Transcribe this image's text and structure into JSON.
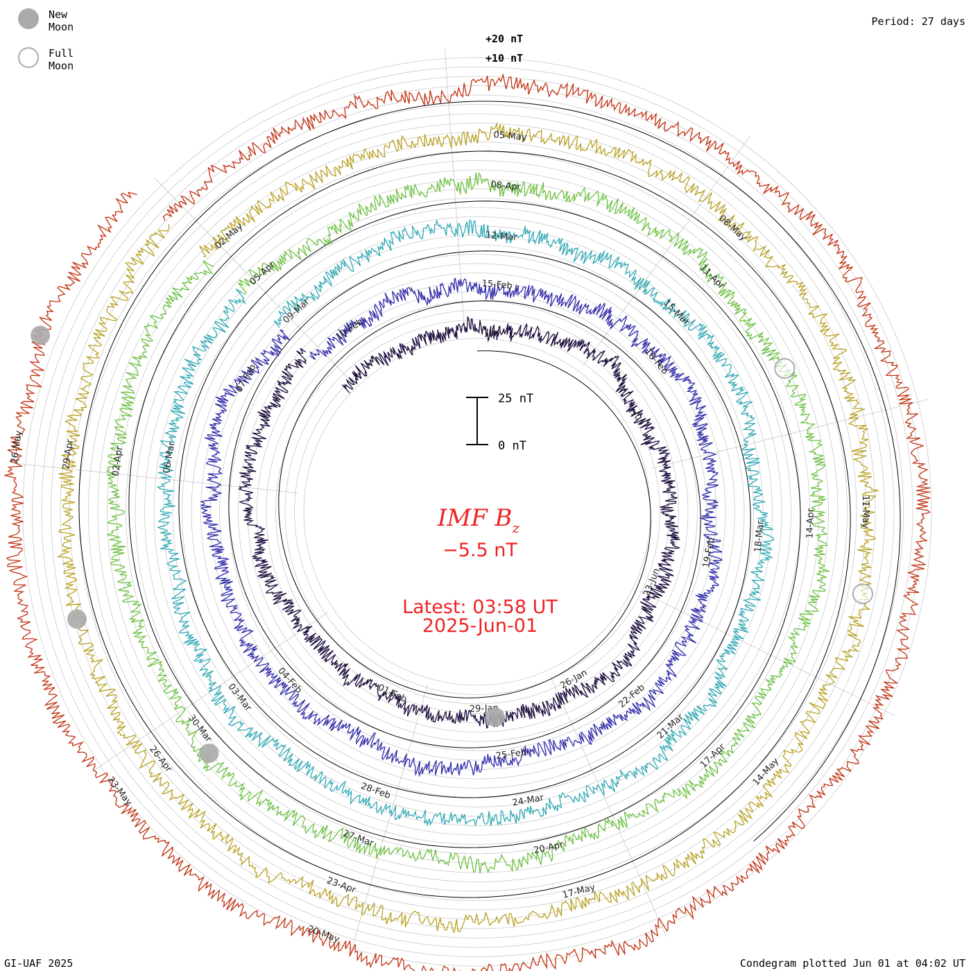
{
  "legend": {
    "new_moon_label": "New Moon",
    "full_moon_label": "Full Moon",
    "new_moon_color": "#aaaaaa",
    "full_moon_color": "#ffffff"
  },
  "header": {
    "period_label": "Period: 27 days"
  },
  "footer": {
    "credit": "GI-UAF 2025",
    "plotted": "Condegram plotted Jun 01 at 04:02 UT"
  },
  "center": {
    "title_main": "IMF B",
    "title_sub": "z",
    "value": "−5.5 nT",
    "latest": "Latest: 03:58 UT",
    "date": "2025-Jun-01",
    "color": "#ee2222"
  },
  "scale_bar": {
    "top_label": "25 nT",
    "bottom_label": "0 nT"
  },
  "chart_data": {
    "type": "line",
    "form": "condegram spiral",
    "title": "IMF Bz",
    "ylabel": "nT",
    "period_days": 27,
    "scale_labels": [
      "+20 nT",
      "+10 nT"
    ],
    "series": [
      {
        "name": "Jan",
        "color": "#1a0a3a",
        "start_deg": -47,
        "tick_labels": [
          {
            "text": "Jun",
            "angle": 5
          },
          {
            "text": "Jun",
            "angle": 60
          },
          {
            "text": "23-Jun",
            "angle": 112
          },
          {
            "text": "26-Jan",
            "angle": 150
          },
          {
            "text": "29-Jan",
            "angle": 178
          },
          {
            "text": "01-Feb",
            "angle": 205
          }
        ]
      },
      {
        "name": "Feb",
        "color": "#2e2aa8",
        "start_deg": -47,
        "tick_labels": [
          {
            "text": "15-Feb",
            "angle": 5
          },
          {
            "text": "18-Feb",
            "angle": 50
          },
          {
            "text": "19-Feb",
            "angle": 100
          },
          {
            "text": "22-Feb",
            "angle": 140
          },
          {
            "text": "25-Feb",
            "angle": 172
          },
          {
            "text": "04-Feb",
            "angle": 228
          },
          {
            "text": "07-Feb",
            "angle": 300
          },
          {
            "text": "10-Feb",
            "angle": 325
          }
        ]
      },
      {
        "name": "Mar",
        "color": "#2fa8b4",
        "start_deg": -47,
        "tick_labels": [
          {
            "text": "12-Mar",
            "angle": 5
          },
          {
            "text": "15-Mar",
            "angle": 45
          },
          {
            "text": "18-Mar",
            "angle": 95
          },
          {
            "text": "21-Mar",
            "angle": 138
          },
          {
            "text": "24-Mar",
            "angle": 170
          },
          {
            "text": "28-Feb",
            "angle": 200
          },
          {
            "text": "03-Mar",
            "angle": 232
          },
          {
            "text": "06-Mar",
            "angle": 280
          },
          {
            "text": "09-Mar",
            "angle": 318
          }
        ]
      },
      {
        "name": "Apr",
        "color": "#6cc040",
        "start_deg": -47,
        "tick_labels": [
          {
            "text": "08-Apr",
            "angle": 5
          },
          {
            "text": "11-Apr",
            "angle": 45
          },
          {
            "text": "14-Apr",
            "angle": 92
          },
          {
            "text": "17-Apr",
            "angle": 136
          },
          {
            "text": "20-Apr",
            "angle": 168
          },
          {
            "text": "27-Mar",
            "angle": 200
          },
          {
            "text": "30-Mar",
            "angle": 232
          },
          {
            "text": "02-Apr",
            "angle": 278
          },
          {
            "text": "05-Apr",
            "angle": 318
          }
        ]
      },
      {
        "name": "Apr-May",
        "color": "#b8a020",
        "start_deg": -47,
        "tick_labels": [
          {
            "text": "05-May",
            "angle": 5
          },
          {
            "text": "08-May",
            "angle": 42
          },
          {
            "text": "11-May",
            "angle": 90
          },
          {
            "text": "14-May",
            "angle": 132
          },
          {
            "text": "17-May",
            "angle": 165
          },
          {
            "text": "23-Apr",
            "angle": 200
          },
          {
            "text": "26-Apr",
            "angle": 232
          },
          {
            "text": "29-Apr",
            "angle": 278
          },
          {
            "text": "02-May",
            "angle": 318
          }
        ]
      },
      {
        "name": "May",
        "color": "#c03010",
        "start_deg": -47,
        "tick_labels": [
          {
            "text": "20-May",
            "angle": 200
          },
          {
            "text": "23-May",
            "angle": 232
          },
          {
            "text": "26-May",
            "angle": 278
          }
        ]
      }
    ],
    "moons": [
      {
        "type": "new",
        "ring": 5,
        "angle": 292
      },
      {
        "type": "new",
        "ring": 4,
        "angle": 255
      },
      {
        "type": "new",
        "ring": 3,
        "angle": 228
      },
      {
        "type": "new",
        "ring": 0,
        "angle": 175
      },
      {
        "type": "full",
        "ring": 3,
        "angle": 65
      },
      {
        "type": "full",
        "ring": 4,
        "angle": 102
      }
    ]
  }
}
